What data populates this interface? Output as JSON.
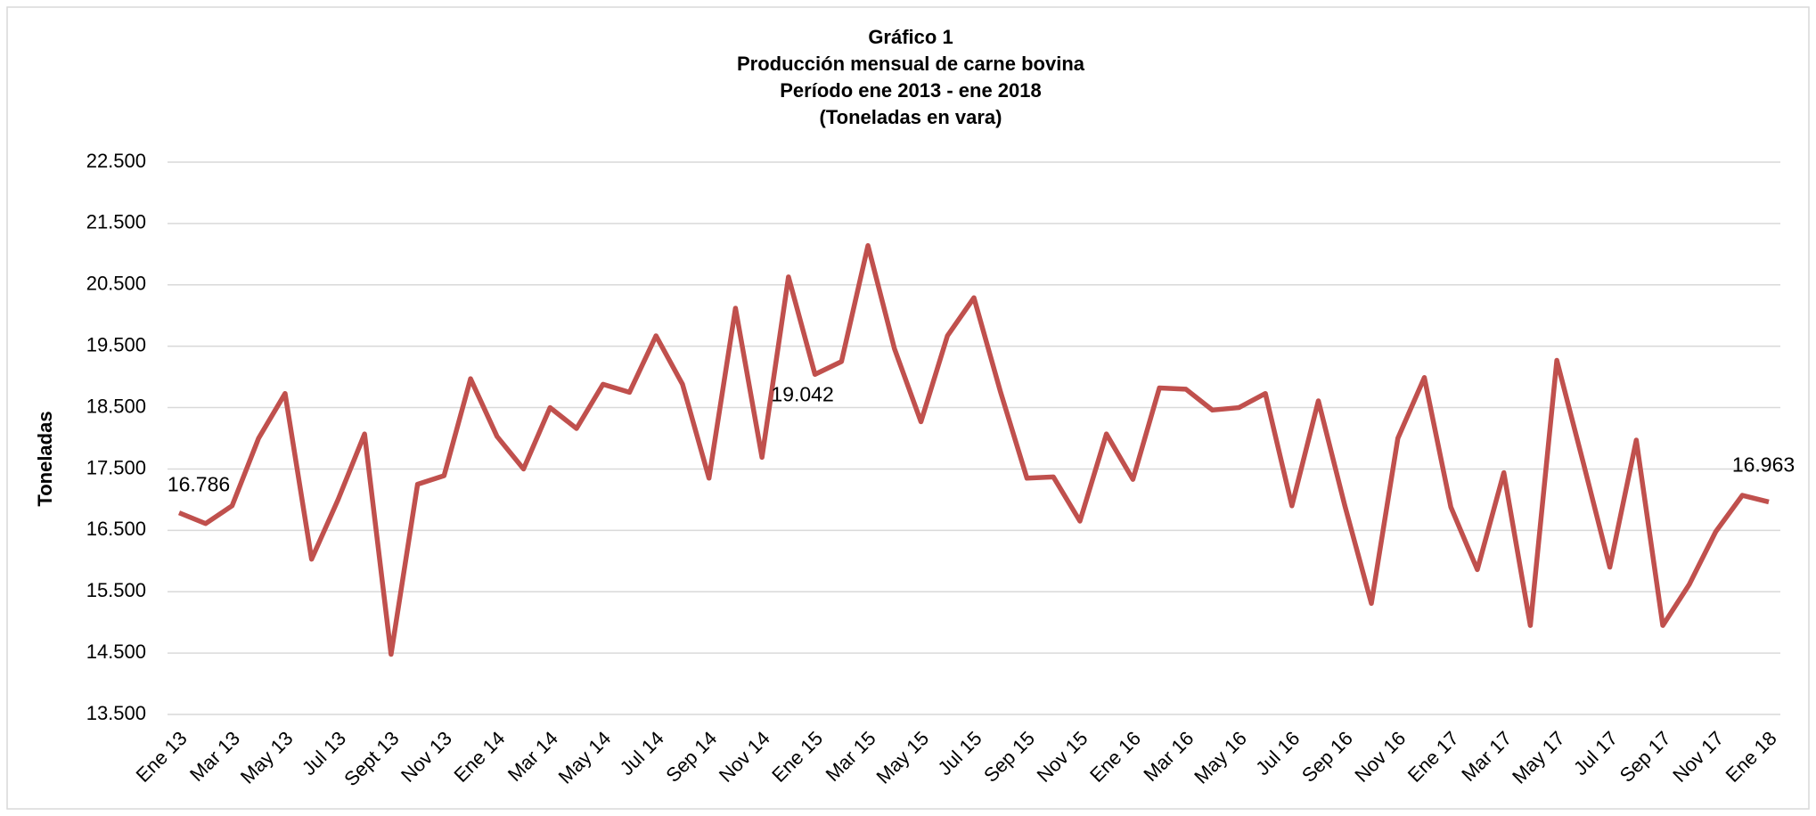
{
  "chart_data": {
    "type": "line",
    "title": [
      "Gráfico 1",
      "Producción mensual de carne bovina",
      "Período ene 2013 -  ene 2018",
      "(Toneladas en vara)"
    ],
    "y_label": "Toneladas",
    "categories": [
      "Ene 13",
      null,
      "Mar 13",
      null,
      "May 13",
      null,
      "Jul 13",
      null,
      "Sept 13",
      null,
      "Nov 13",
      null,
      "Ene  14",
      null,
      "Mar 14",
      null,
      "May 14",
      null,
      "Jul 14",
      null,
      "Sep 14",
      null,
      "Nov 14",
      null,
      "Ene 15",
      null,
      "Mar 15",
      null,
      "May 15",
      null,
      "Jul 15",
      null,
      "Sep 15",
      null,
      "Nov 15",
      null,
      "Ene 16",
      null,
      "Mar 16",
      null,
      "May 16",
      null,
      "Jul 16",
      null,
      "Sep 16",
      null,
      "Nov 16",
      null,
      "Ene 17",
      null,
      "Mar 17",
      null,
      "May 17",
      null,
      "Jul 17",
      null,
      "Sep 17",
      null,
      "Nov 17",
      null,
      "Ene 18"
    ],
    "series": [
      {
        "name": "Toneladas",
        "color": "#c0504d",
        "values": [
          16786,
          16610,
          16900,
          18000,
          18730,
          16030,
          17000,
          18070,
          14480,
          17250,
          17390,
          18970,
          18030,
          17500,
          18500,
          18160,
          18880,
          18750,
          19670,
          18880,
          17350,
          20120,
          17690,
          20630,
          19042,
          19250,
          21140,
          19460,
          18270,
          19670,
          20290,
          18760,
          17350,
          17370,
          16650,
          18070,
          17330,
          18820,
          18800,
          18460,
          18500,
          18730,
          16900,
          18610,
          16900,
          15310,
          18000,
          18990,
          16880,
          15860,
          17440,
          14950,
          19270,
          17600,
          15900,
          17970,
          14950,
          15620,
          16480,
          17070,
          16963
        ],
        "value_labels": [
          "16.786",
          null,
          null,
          null,
          null,
          null,
          null,
          null,
          null,
          null,
          null,
          null,
          null,
          null,
          null,
          null,
          null,
          null,
          null,
          null,
          null,
          null,
          null,
          null,
          "19.042",
          null,
          null,
          null,
          null,
          null,
          null,
          null,
          null,
          null,
          null,
          null,
          null,
          null,
          null,
          null,
          null,
          null,
          null,
          null,
          null,
          null,
          null,
          null,
          null,
          null,
          null,
          null,
          null,
          null,
          null,
          null,
          null,
          null,
          null,
          null,
          "16.963"
        ]
      }
    ],
    "ylim": [
      13500,
      22500
    ],
    "yticks": [
      {
        "value": 13500,
        "label": "13.500"
      },
      {
        "value": 14500,
        "label": "14.500"
      },
      {
        "value": 15500,
        "label": "15.500"
      },
      {
        "value": 16500,
        "label": "16.500"
      },
      {
        "value": 17500,
        "label": "17.500"
      },
      {
        "value": 18500,
        "label": "18.500"
      },
      {
        "value": 19500,
        "label": "19.500"
      },
      {
        "value": 20500,
        "label": "20.500"
      },
      {
        "value": 21500,
        "label": "21.500"
      },
      {
        "value": 22500,
        "label": "22.500"
      }
    ],
    "grid": true
  }
}
